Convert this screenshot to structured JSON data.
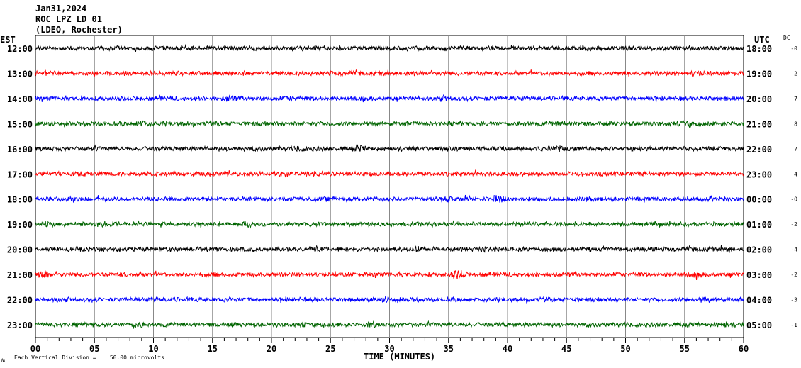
{
  "chart_data": {
    "type": "line",
    "title_lines": [
      "Jan31,2024",
      "ROC LPZ LD 01",
      "(LDEO, Rochester)"
    ],
    "left_axis_title": "EST",
    "right_axis_title": "UTC",
    "dc_title": "DC",
    "xlabel": "TIME (MINUTES)",
    "xlim": [
      0,
      60
    ],
    "x_ticks": [
      "00",
      "05",
      "10",
      "15",
      "20",
      "25",
      "30",
      "35",
      "40",
      "45",
      "50",
      "55",
      "60"
    ],
    "scale_note": "Each Vertical Division =    50.00 microvolts",
    "corner_mark": "ʍ",
    "colors": [
      "#000000",
      "#ff0000",
      "#0000ff",
      "#006400"
    ],
    "grid": true,
    "rows": [
      {
        "est": "12:00",
        "utc": "18:00",
        "dc": "-0",
        "events": [
          [
            46.5,
            1.6
          ],
          [
            10,
            1.3
          ]
        ]
      },
      {
        "est": "13:00",
        "utc": "19:00",
        "dc": "2",
        "events": [
          [
            56,
            1.7
          ],
          [
            1.5,
            1.4
          ],
          [
            31.5,
            1.4
          ]
        ]
      },
      {
        "est": "14:00",
        "utc": "20:00",
        "dc": "7",
        "events": [
          [
            16.5,
            1.8
          ],
          [
            21.5,
            1.6
          ],
          [
            34.5,
            1.5
          ]
        ]
      },
      {
        "est": "15:00",
        "utc": "21:00",
        "dc": "8",
        "events": [
          [
            9,
            1.9
          ],
          [
            55.3,
            1.7
          ],
          [
            44.5,
            1.4
          ]
        ]
      },
      {
        "est": "16:00",
        "utc": "22:00",
        "dc": "7",
        "events": [
          [
            27.5,
            1.8
          ],
          [
            22.5,
            1.5
          ],
          [
            44.5,
            1.4
          ]
        ]
      },
      {
        "est": "17:00",
        "utc": "23:00",
        "dc": "4",
        "events": [
          [
            21,
            1.6
          ],
          [
            4,
            1.4
          ]
        ]
      },
      {
        "est": "18:00",
        "utc": "00:00",
        "dc": "-0",
        "events": [
          [
            39.3,
            2.2
          ],
          [
            3,
            1.8
          ],
          [
            35,
            1.4
          ]
        ]
      },
      {
        "est": "19:00",
        "utc": "01:00",
        "dc": "-2",
        "events": [
          [
            18,
            1.8
          ],
          [
            6,
            1.5
          ],
          [
            1,
            1.4
          ]
        ]
      },
      {
        "est": "20:00",
        "utc": "02:00",
        "dc": "-4",
        "events": [
          [
            32.5,
            1.6
          ],
          [
            58.5,
            1.5
          ],
          [
            38,
            1.4
          ]
        ]
      },
      {
        "est": "21:00",
        "utc": "03:00",
        "dc": "-2",
        "events": [
          [
            35.8,
            2.3
          ],
          [
            0.8,
            1.8
          ],
          [
            56,
            1.5
          ]
        ]
      },
      {
        "est": "22:00",
        "utc": "04:00",
        "dc": "-3",
        "events": [
          [
            29.8,
            1.5
          ],
          [
            2,
            1.4
          ],
          [
            56.5,
            1.4
          ]
        ]
      },
      {
        "est": "23:00",
        "utc": "05:00",
        "dc": "-1",
        "events": [
          [
            8.5,
            1.8
          ],
          [
            28.5,
            1.5
          ],
          [
            58.5,
            1.5
          ]
        ]
      }
    ]
  }
}
